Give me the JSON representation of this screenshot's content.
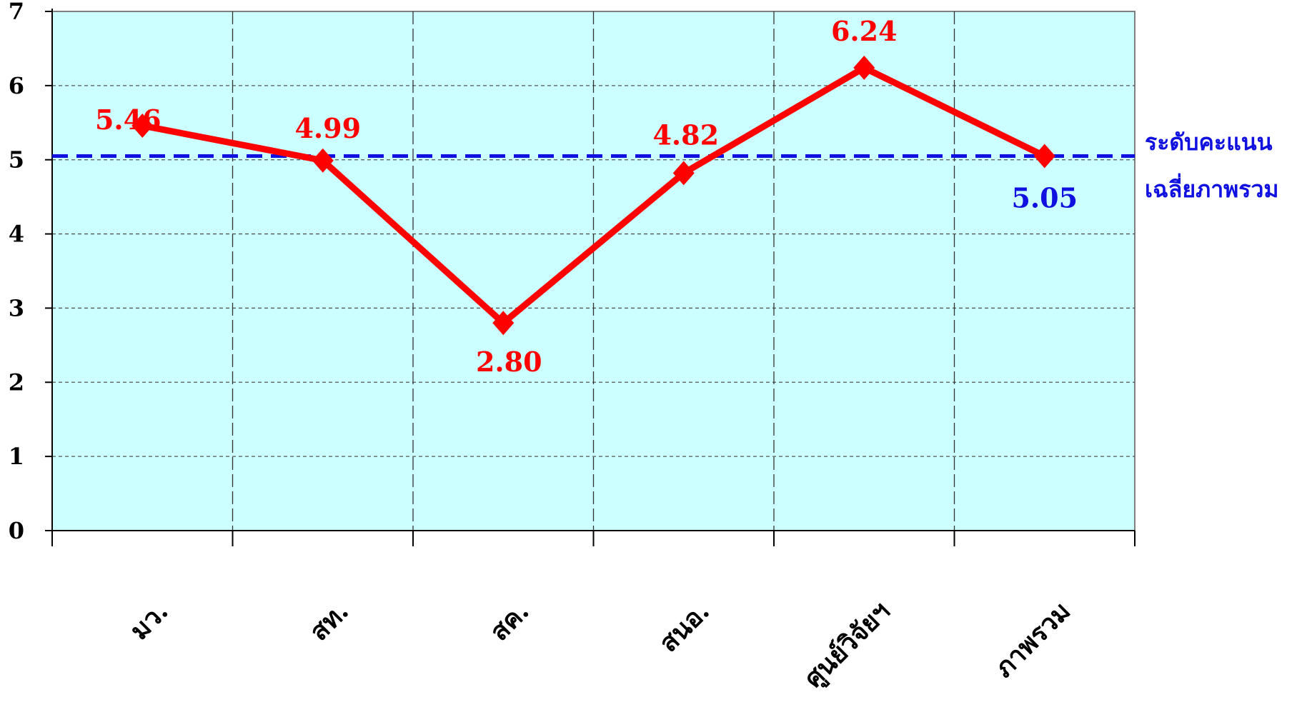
{
  "chart_data": {
    "type": "line",
    "title": "",
    "xlabel": "",
    "ylabel": "",
    "categories": [
      "มว.",
      "สท.",
      "สค.",
      "สนอ.",
      "ศูนย์วิจัยฯ",
      "ภาพรวม"
    ],
    "series": [
      {
        "values": [
          5.46,
          4.99,
          2.8,
          4.82,
          6.24,
          5.05
        ],
        "color": "#ff0000"
      }
    ],
    "data_labels": [
      "5.46",
      "4.99",
      "2.80",
      "4.82",
      "6.24",
      "5.05"
    ],
    "reference_line": {
      "value": 5.05,
      "label_line1": "ระดับคะแนน",
      "label_line2": "เฉลี่ยภาพรวม",
      "color": "#1010e0",
      "style": "dashed"
    },
    "ylim": [
      0,
      7
    ],
    "yticks": [
      "0",
      "1",
      "2",
      "3",
      "4",
      "5",
      "6",
      "7"
    ],
    "grid": true,
    "plot_background": "#ccffff",
    "legend": "none"
  }
}
